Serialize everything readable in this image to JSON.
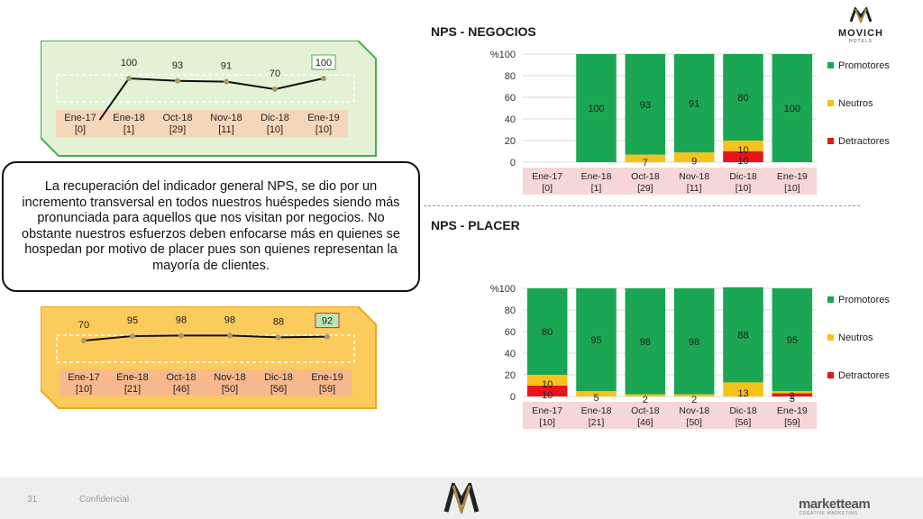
{
  "slide": {
    "title_business": "NPS - NEGOCIOS",
    "title_leisure": "NPS - PLACER",
    "logo_name": "MOVICH",
    "logo_sub": "HOTELS",
    "note": "La recuperación del indicador general NPS, se dio por un incremento transversal en todos nuestros huéspedes siendo más pronunciada para aquellos que nos visitan por negocios. No obstante nuestros esfuerzos deben enfocarse más en quienes se hospedan por motivo de placer pues son quienes representan la mayoría de clientes.",
    "footer_page": "31",
    "footer_confidential": "Confidencial",
    "footer_brand": "marketteam",
    "footer_brand_sub": "CREATIVE MARKETING"
  },
  "colors": {
    "promotores": "#1aa653",
    "neutros": "#f7c21a",
    "detractores": "#e8151b",
    "axis_label_bg": "#f6d6d6",
    "green_panel": "#e3f2d4",
    "green_border": "#45b14a",
    "yellow_panel": "#fbcb5b",
    "yellow_border": "#f0a61e",
    "tick_box_green": "#f5d6b8",
    "tick_box_yellow": "#f7b98c",
    "line": "#111111",
    "marker": "#a89a6a"
  },
  "chart_data": [
    {
      "type": "line",
      "id": "line_negocios",
      "categories": [
        "Ene-17\n[0]",
        "Ene-18\n[1]",
        "Oct-18\n[29]",
        "Nov-18\n[11]",
        "Dic-18\n[10]",
        "Ene-19\n[10]"
      ],
      "values": [
        null,
        100,
        93,
        91,
        70,
        100
      ],
      "labels": [
        "",
        "100",
        "93",
        "91",
        "70",
        "100"
      ],
      "ylim": [
        0,
        110
      ]
    },
    {
      "type": "bar",
      "id": "bar_negocios",
      "stacked": true,
      "categories": [
        "Ene-17\n[0]",
        "Ene-18\n[1]",
        "Oct-18\n[29]",
        "Nov-18\n[11]",
        "Dic-18\n[10]",
        "Ene-19\n[10]"
      ],
      "series": [
        {
          "name": "Detractores",
          "values": [
            0,
            0,
            0,
            0,
            10,
            0
          ],
          "labels": [
            "",
            "",
            "",
            "",
            "10",
            ""
          ]
        },
        {
          "name": "Neutros",
          "values": [
            0,
            0,
            7,
            9,
            10,
            0
          ],
          "labels": [
            "",
            "",
            "7",
            "9",
            "10",
            ""
          ]
        },
        {
          "name": "Promotores",
          "values": [
            0,
            100,
            93,
            91,
            80,
            100
          ],
          "labels": [
            "",
            "100",
            "93",
            "91",
            "80",
            "100"
          ]
        }
      ],
      "ylim": [
        0,
        100
      ],
      "yticks": [
        "0",
        "20",
        "40",
        "60",
        "80",
        "%100"
      ],
      "legend_position": "right"
    },
    {
      "type": "line",
      "id": "line_placer",
      "categories": [
        "Ene-17\n[10]",
        "Ene-18\n[21]",
        "Oct-18\n[46]",
        "Nov-18\n[50]",
        "Dic-18\n[56]",
        "Ene-19\n[59]"
      ],
      "values": [
        70,
        95,
        98,
        98,
        88,
        92
      ],
      "labels": [
        "70",
        "95",
        "98",
        "98",
        "88",
        "92"
      ],
      "ylim": [
        0,
        110
      ]
    },
    {
      "type": "bar",
      "id": "bar_placer",
      "stacked": true,
      "categories": [
        "Ene-17\n[10]",
        "Ene-18\n[21]",
        "Oct-18\n[46]",
        "Nov-18\n[50]",
        "Dic-18\n[56]",
        "Ene-19\n[59]"
      ],
      "series": [
        {
          "name": "Detractores",
          "values": [
            10,
            0,
            0,
            0,
            0,
            3
          ],
          "labels": [
            "10",
            "",
            "",
            "",
            "",
            "3"
          ]
        },
        {
          "name": "Neutros",
          "values": [
            10,
            5,
            2,
            2,
            13,
            2
          ],
          "labels": [
            "10",
            "5",
            "2",
            "2",
            "13",
            "2"
          ]
        },
        {
          "name": "Promotores",
          "values": [
            80,
            95,
            98,
            98,
            88,
            95
          ],
          "labels": [
            "80",
            "95",
            "98",
            "98",
            "88",
            "95"
          ]
        }
      ],
      "ylim": [
        0,
        100
      ],
      "yticks": [
        "0",
        "20",
        "40",
        "60",
        "80",
        "%100"
      ],
      "legend_position": "right"
    }
  ]
}
